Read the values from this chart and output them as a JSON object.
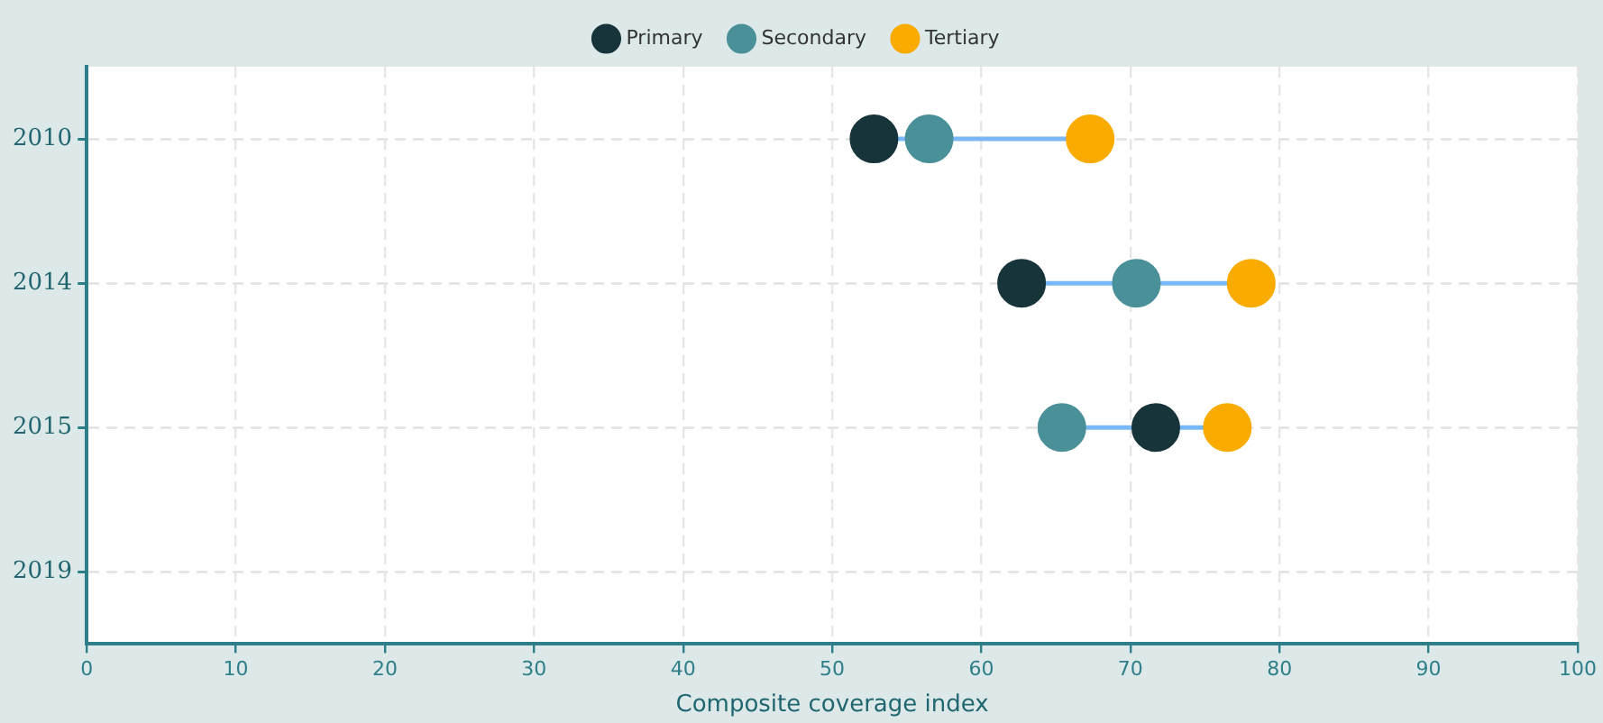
{
  "chart_data": {
    "type": "scatter",
    "orientation": "horizontal",
    "xlabel": "Composite coverage index",
    "categories": [
      "2010",
      "2014",
      "2015",
      "2019"
    ],
    "series": [
      {
        "name": "Primary",
        "color": "#17343a",
        "values": [
          52.8,
          62.7,
          71.7,
          null
        ]
      },
      {
        "name": "Secondary",
        "color": "#4a9099",
        "values": [
          56.5,
          70.4,
          65.4,
          null
        ]
      },
      {
        "name": "Tertiary",
        "color": "#f9ab00",
        "values": [
          67.3,
          78.1,
          76.5,
          null
        ]
      }
    ],
    "xlim": [
      0,
      100
    ],
    "xticks": [
      0,
      10,
      20,
      30,
      40,
      50,
      60,
      70,
      80,
      90,
      100
    ],
    "grid": true,
    "legend": "top",
    "marker": "circle"
  }
}
